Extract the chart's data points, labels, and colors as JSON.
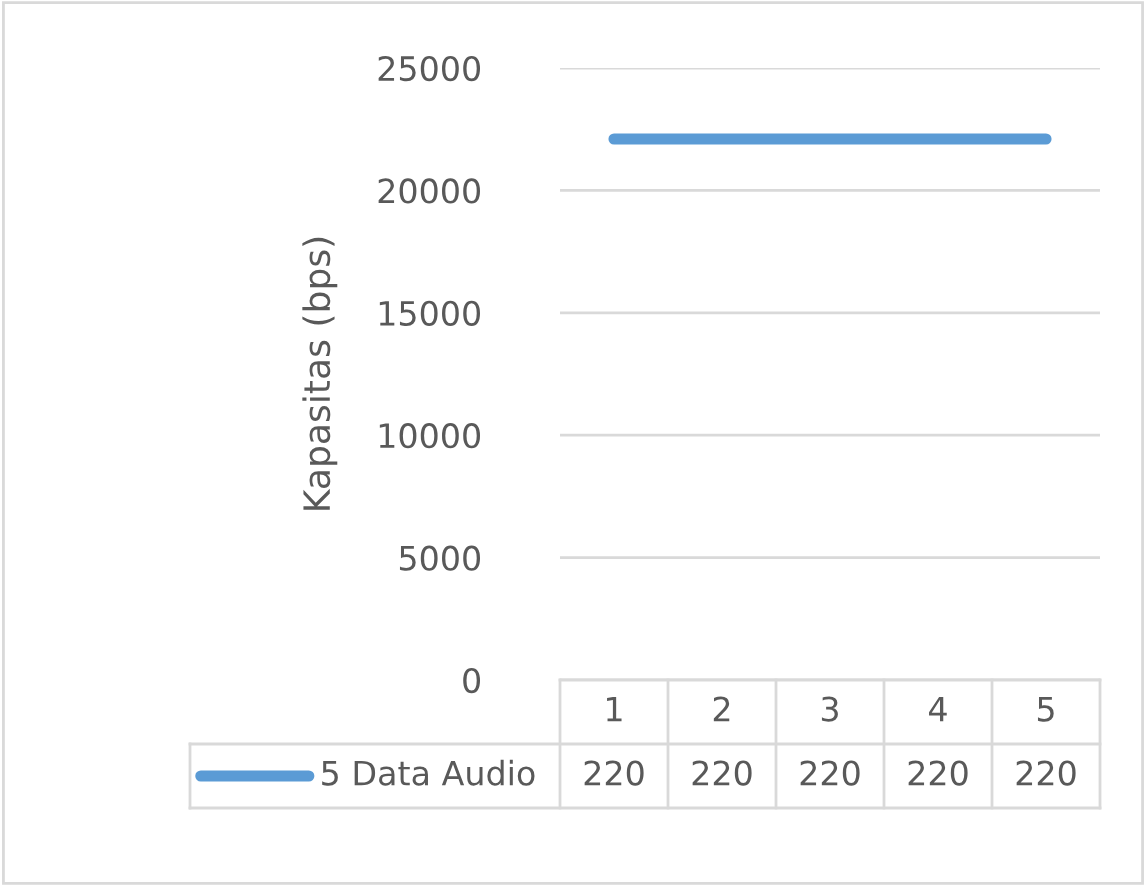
{
  "chart_data": {
    "type": "line",
    "ylabel": "Kapasitas (bps)",
    "categories": [
      "1",
      "2",
      "3",
      "4",
      "5"
    ],
    "series": [
      {
        "name": "5 Data Audio",
        "color": "#5b9bd5",
        "values": [
          22100,
          22100,
          22100,
          22100,
          22100
        ]
      }
    ],
    "annotations": [
      "220",
      "220",
      "220",
      "220",
      "220"
    ],
    "ylim": [
      0,
      25000
    ],
    "yticks": [
      0,
      5000,
      10000,
      15000,
      20000,
      25000
    ],
    "grid": "y",
    "marker": "none",
    "line_style": "solid"
  }
}
